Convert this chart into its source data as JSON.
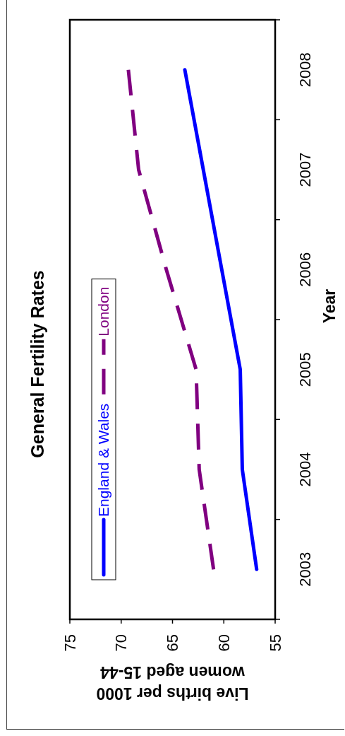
{
  "chart_data": {
    "type": "line",
    "orientation": "horizontal",
    "title": "General Fertility Rates",
    "xlabel": "Live births per 1000 women aged 15-44",
    "ylabel": "Year",
    "categories": [
      "2008",
      "2007",
      "2006",
      "2005",
      "2004",
      "2003"
    ],
    "series": [
      {
        "name": "England & Wales",
        "color": "#0000ff",
        "line_style": "solid",
        "values": [
          63.8,
          62.0,
          60.2,
          58.4,
          58.2,
          56.8
        ]
      },
      {
        "name": "London",
        "color": "#800080",
        "line_style": "dashed",
        "values": [
          69.3,
          68.3,
          65.6,
          62.7,
          62.4,
          61.0
        ]
      }
    ],
    "xlim": [
      75,
      55
    ],
    "xticks": [
      55,
      60,
      65,
      70,
      75
    ],
    "legend": "left"
  }
}
